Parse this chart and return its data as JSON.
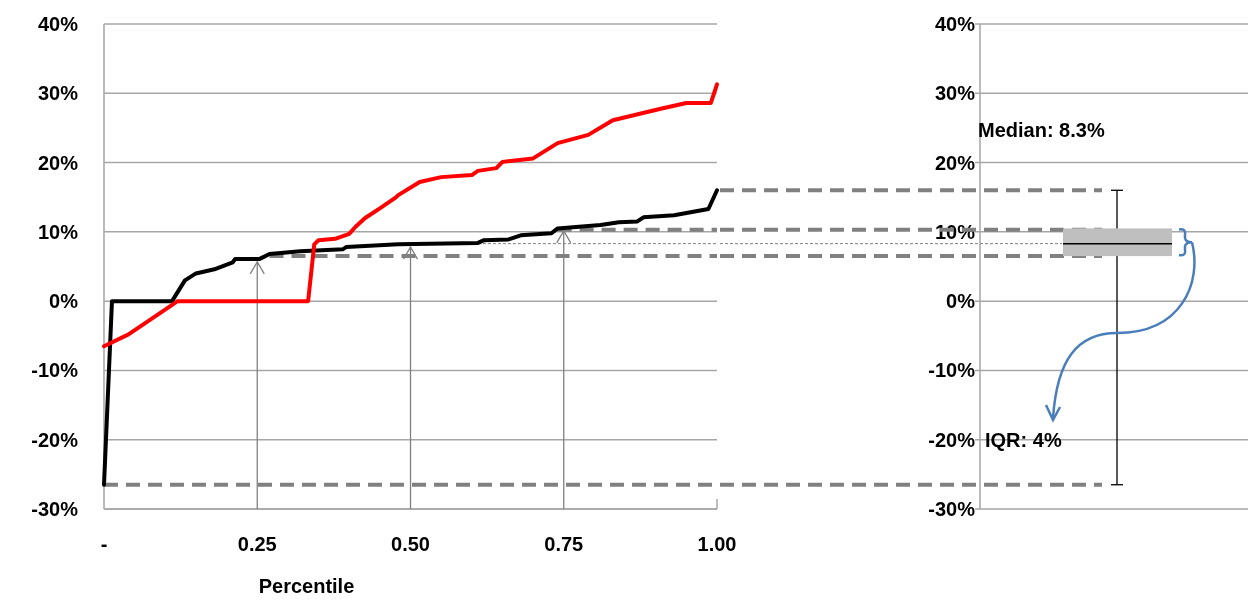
{
  "chart_data": [
    {
      "type": "line",
      "xlabel": "Percentile",
      "xlim": [
        0,
        1
      ],
      "xticks": [
        {
          "value": 0,
          "label": "-"
        },
        {
          "value": 0.25,
          "label": "0.25"
        },
        {
          "value": 0.5,
          "label": "0.50"
        },
        {
          "value": 0.75,
          "label": "0.75"
        },
        {
          "value": 1,
          "label": "1.00"
        }
      ],
      "ylim": [
        -30,
        40
      ],
      "yticks": [
        {
          "value": -30,
          "label": "-30%"
        },
        {
          "value": -20,
          "label": "-20%"
        },
        {
          "value": -10,
          "label": "-10%"
        },
        {
          "value": 0,
          "label": "0%"
        },
        {
          "value": 10,
          "label": "10%"
        },
        {
          "value": 20,
          "label": "20%"
        },
        {
          "value": 30,
          "label": "30%"
        },
        {
          "value": 40,
          "label": "40%"
        }
      ],
      "grid": "y",
      "line_style": "solid",
      "series": [
        {
          "color": "#000000",
          "x": [
            0,
            0.013,
            0.111,
            0.132,
            0.15,
            0.18,
            0.21,
            0.214,
            0.254,
            0.27,
            0.32,
            0.39,
            0.395,
            0.48,
            0.61,
            0.62,
            0.66,
            0.68,
            0.73,
            0.74,
            0.81,
            0.84,
            0.87,
            0.88,
            0.93,
            0.986,
            1
          ],
          "values": [
            -26.5,
            0,
            0,
            3,
            4,
            4.6,
            5.6,
            6.1,
            6.1,
            6.8,
            7.2,
            7.5,
            7.8,
            8.2,
            8.4,
            8.8,
            8.9,
            9.5,
            9.8,
            10.5,
            11,
            11.4,
            11.5,
            12.1,
            12.4,
            13.3,
            16
          ]
        },
        {
          "color": "#ff0000",
          "x": [
            0,
            0.04,
            0.11,
            0.12,
            0.333,
            0.343,
            0.35,
            0.377,
            0.4,
            0.41,
            0.426,
            0.45,
            0.475,
            0.48,
            0.515,
            0.55,
            0.6,
            0.61,
            0.64,
            0.65,
            0.7,
            0.74,
            0.79,
            0.83,
            0.91,
            0.95,
            0.99,
            1
          ],
          "values": [
            -6.5,
            -4.8,
            -0.6,
            0,
            0,
            8.2,
            8.8,
            9,
            9.7,
            10.7,
            12,
            13.4,
            14.9,
            15.3,
            17.2,
            17.9,
            18.2,
            18.8,
            19.2,
            20.1,
            20.6,
            22.8,
            24,
            26.1,
            27.8,
            28.6,
            28.6,
            31.3
          ]
        }
      ],
      "ref_lines": [
        {
          "axis": "y",
          "value": 10.3,
          "color": "#808080",
          "line_style": "dashed"
        },
        {
          "axis": "y",
          "value": 6.5,
          "color": "#808080",
          "line_style": "dashed"
        },
        {
          "axis": "y",
          "value": -26.5,
          "color": "#808080",
          "line_style": "dashed"
        },
        {
          "axis": "y",
          "value": 8.3,
          "color": "#808080",
          "line_style": "dotted"
        },
        {
          "axis": "x",
          "value": 0.25,
          "color": "#808080"
        },
        {
          "axis": "x",
          "value": 0.5,
          "color": "#808080"
        },
        {
          "axis": "x",
          "value": 0.75,
          "color": "#808080"
        }
      ]
    },
    {
      "type": "box",
      "categories": [
        null
      ],
      "ylim": [
        -30,
        40
      ],
      "yticks": [
        {
          "value": -30,
          "label": "-30%"
        },
        {
          "value": -20,
          "label": "-20%"
        },
        {
          "value": -10,
          "label": "-10%"
        },
        {
          "value": 0,
          "label": "0%"
        },
        {
          "value": 10,
          "label": "10%"
        },
        {
          "value": 20,
          "label": "20%"
        },
        {
          "value": 30,
          "label": "30%"
        },
        {
          "value": 40,
          "label": "40%"
        }
      ],
      "grid": "y",
      "color": "#bfbfbf",
      "boxes": [
        {
          "low": -26.5,
          "q1": 6.5,
          "median": 8.3,
          "q3": 10.5,
          "high": 16
        }
      ],
      "ref_lines": [
        {
          "axis": "y",
          "value": 16,
          "color": "#808080",
          "line_style": "dashed"
        },
        {
          "axis": "y",
          "value": 10.3,
          "color": "#808080",
          "line_style": "dashed"
        },
        {
          "axis": "y",
          "value": 6.5,
          "color": "#808080",
          "line_style": "dashed"
        },
        {
          "axis": "y",
          "value": -26.5,
          "color": "#808080",
          "line_style": "dashed"
        },
        {
          "axis": "y",
          "value": 8.3,
          "color": "#808080",
          "line_style": "dotted"
        }
      ],
      "annotations": [
        "Median: 8.3%",
        "IQR: 4%"
      ]
    }
  ]
}
